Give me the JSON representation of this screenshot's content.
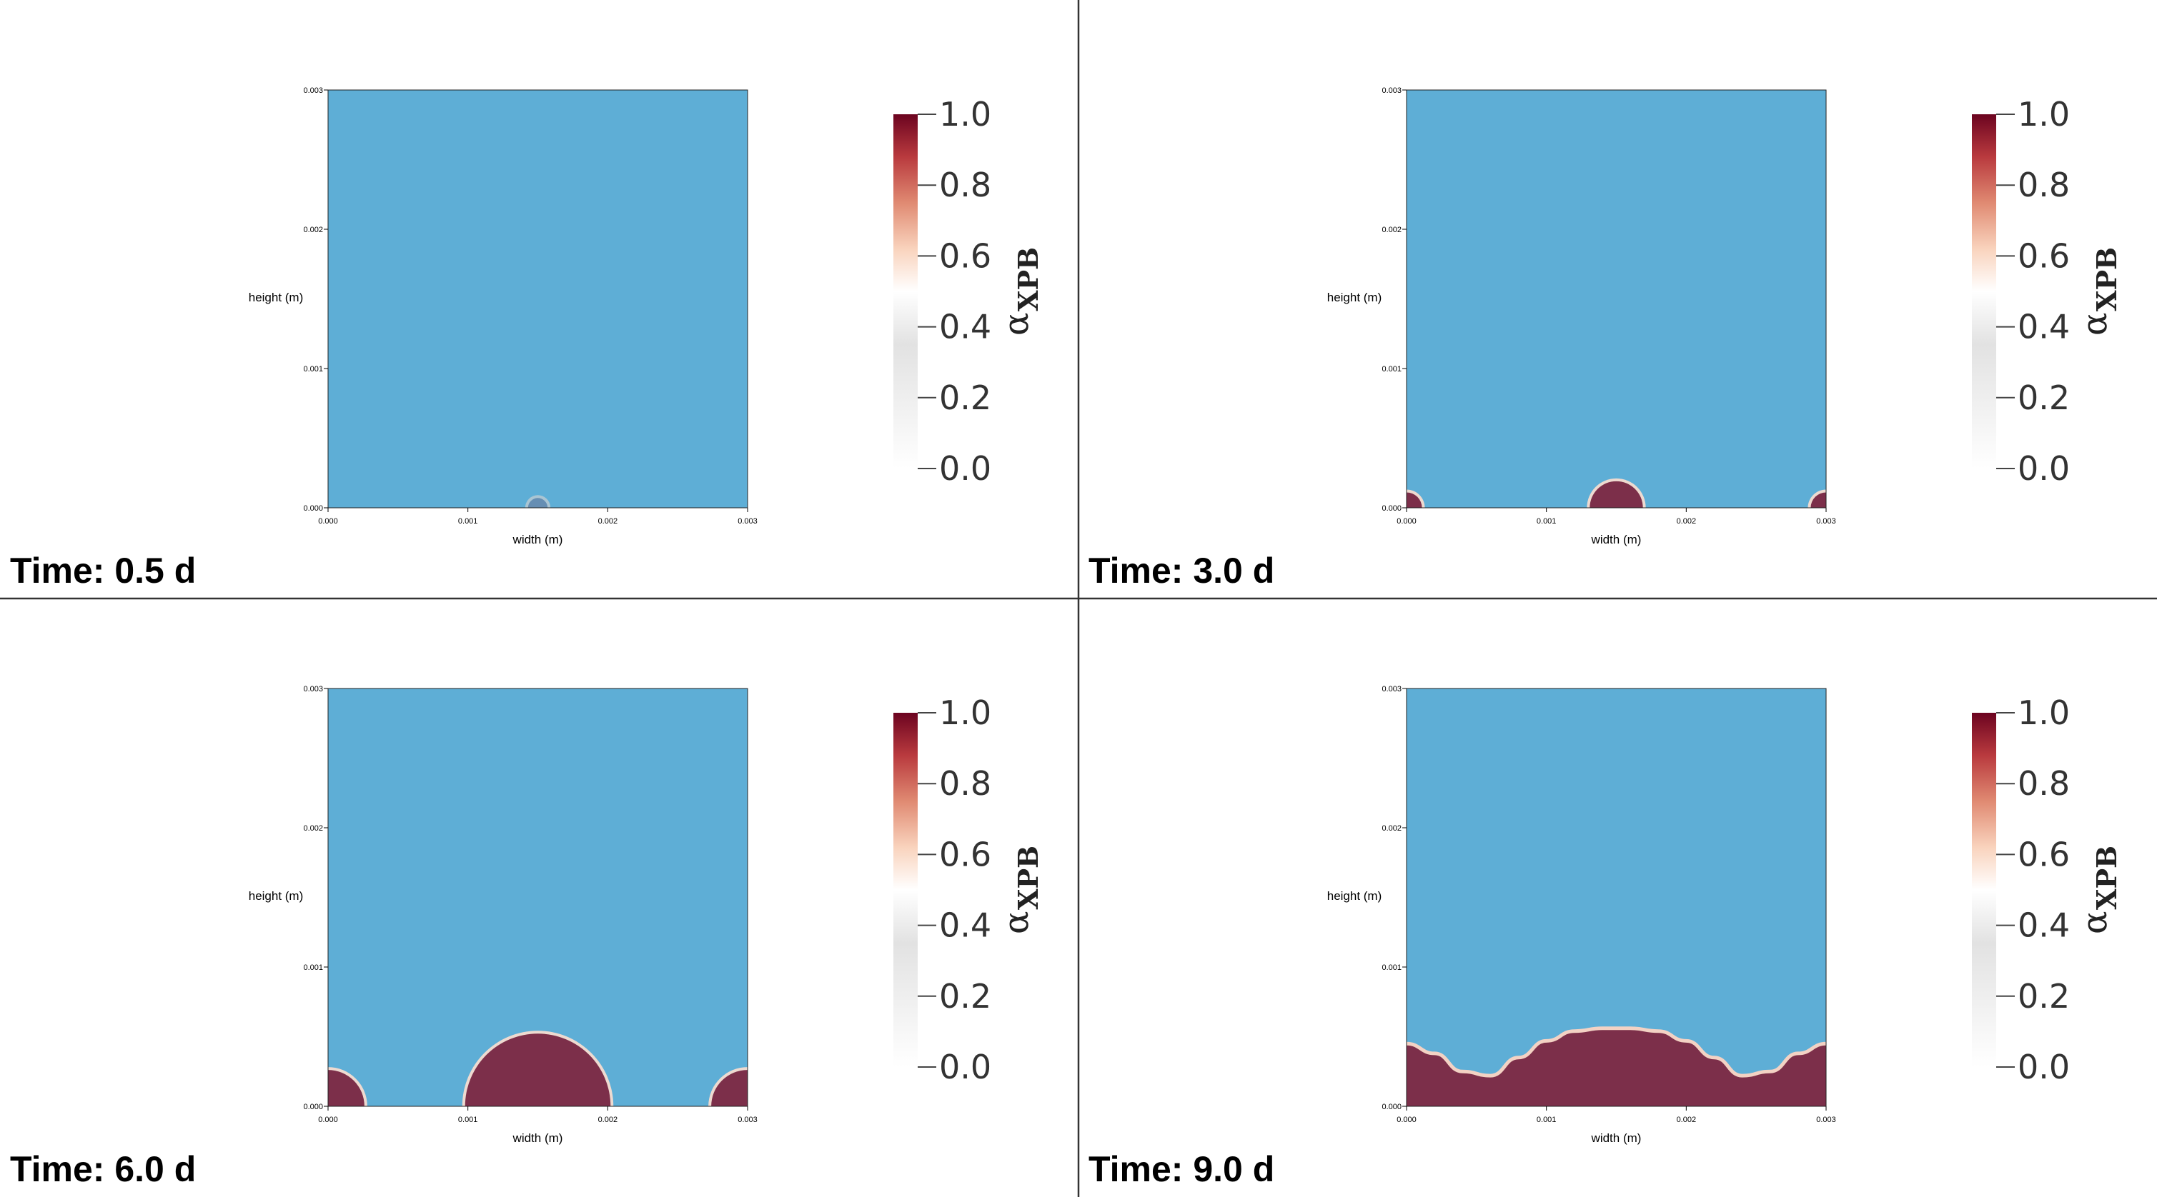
{
  "chart_data": [
    {
      "type": "heatmap",
      "time_label": "Time: 0.5 d",
      "xlabel": "width (m)",
      "ylabel": "height (m)",
      "xlim": [
        0,
        0.003
      ],
      "ylim": [
        0,
        0.003
      ],
      "x_ticks": [
        "0.000",
        "0.001",
        "0.002",
        "0.003"
      ],
      "y_ticks": [
        "0.000",
        "0.001",
        "0.002",
        "0.003"
      ],
      "colorbar": {
        "title": "α",
        "subscript": "XPB",
        "ticks": [
          "0.0",
          "0.2",
          "0.4",
          "0.6",
          "0.8",
          "1.0"
        ],
        "range": [
          0,
          1
        ]
      },
      "background_value": 0,
      "fluid_color": "#5eaed6",
      "solid_color": "#7c2f4a",
      "interface_x": [],
      "interface_y": [],
      "blobs": [
        {
          "cx": 0.0015,
          "r": 7e-05,
          "alpha": 0.25
        }
      ]
    },
    {
      "type": "heatmap",
      "time_label": "Time: 3.0 d",
      "xlabel": "width (m)",
      "ylabel": "height (m)",
      "xlim": [
        0,
        0.003
      ],
      "ylim": [
        0,
        0.003
      ],
      "x_ticks": [
        "0.000",
        "0.001",
        "0.002",
        "0.003"
      ],
      "y_ticks": [
        "0.000",
        "0.001",
        "0.002",
        "0.003"
      ],
      "colorbar": {
        "title": "α",
        "subscript": "XPB",
        "ticks": [
          "0.0",
          "0.2",
          "0.4",
          "0.6",
          "0.8",
          "1.0"
        ],
        "range": [
          0,
          1
        ]
      },
      "background_value": 0,
      "fluid_color": "#5eaed6",
      "solid_color": "#7c2f4a",
      "interface_x": [],
      "interface_y": [],
      "blobs": [
        {
          "cx": 0.0,
          "r": 0.00011,
          "alpha": 1.0
        },
        {
          "cx": 0.0015,
          "r": 0.00019,
          "alpha": 1.0
        },
        {
          "cx": 0.003,
          "r": 0.00011,
          "alpha": 1.0
        }
      ]
    },
    {
      "type": "heatmap",
      "time_label": "Time: 6.0 d",
      "xlabel": "width (m)",
      "ylabel": "height (m)",
      "xlim": [
        0,
        0.003
      ],
      "ylim": [
        0,
        0.003
      ],
      "x_ticks": [
        "0.000",
        "0.001",
        "0.002",
        "0.003"
      ],
      "y_ticks": [
        "0.000",
        "0.001",
        "0.002",
        "0.003"
      ],
      "colorbar": {
        "title": "α",
        "subscript": "XPB",
        "ticks": [
          "0.0",
          "0.2",
          "0.4",
          "0.6",
          "0.8",
          "1.0"
        ],
        "range": [
          0,
          1
        ]
      },
      "background_value": 0,
      "fluid_color": "#5eaed6",
      "solid_color": "#7c2f4a",
      "interface_x": [],
      "interface_y": [],
      "blobs": [
        {
          "cx": 0.0,
          "r": 0.00026,
          "alpha": 1.0
        },
        {
          "cx": 0.0015,
          "r": 0.00052,
          "alpha": 1.0
        },
        {
          "cx": 0.003,
          "r": 0.00026,
          "alpha": 1.0
        }
      ]
    },
    {
      "type": "heatmap",
      "time_label": "Time: 9.0 d",
      "xlabel": "width (m)",
      "ylabel": "height (m)",
      "xlim": [
        0,
        0.003
      ],
      "ylim": [
        0,
        0.003
      ],
      "x_ticks": [
        "0.000",
        "0.001",
        "0.002",
        "0.003"
      ],
      "y_ticks": [
        "0.000",
        "0.001",
        "0.002",
        "0.003"
      ],
      "colorbar": {
        "title": "α",
        "subscript": "XPB",
        "ticks": [
          "0.0",
          "0.2",
          "0.4",
          "0.6",
          "0.8",
          "1.0"
        ],
        "range": [
          0,
          1
        ]
      },
      "background_value": 0,
      "fluid_color": "#5eaed6",
      "solid_color": "#7c2f4a",
      "interface_x": [
        0,
        0.0002,
        0.0004,
        0.0006,
        0.0008,
        0.001,
        0.0012,
        0.0014,
        0.0015,
        0.0016,
        0.0018,
        0.002,
        0.0022,
        0.0024,
        0.0026,
        0.0028,
        0.003
      ],
      "interface_y": [
        0.00045,
        0.00038,
        0.00025,
        0.00022,
        0.00035,
        0.00047,
        0.00054,
        0.00056,
        0.00056,
        0.00056,
        0.00054,
        0.00047,
        0.00035,
        0.00022,
        0.00025,
        0.00038,
        0.00045
      ],
      "blobs": []
    }
  ]
}
